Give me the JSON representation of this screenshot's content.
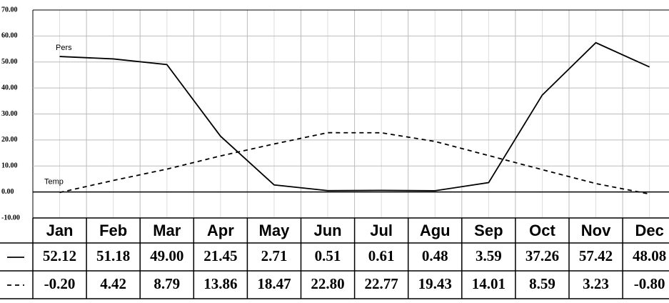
{
  "chart_data": {
    "type": "line",
    "categories": [
      "Jan",
      "Feb",
      "Mar",
      "Apr",
      "May",
      "Jun",
      "Jul",
      "Agu",
      "Sep",
      "Oct",
      "Nov",
      "Dec"
    ],
    "series": [
      {
        "name": "Pers",
        "color": "#000000",
        "line_style": "solid",
        "values": [
          52.12,
          51.18,
          49.0,
          21.45,
          2.71,
          0.51,
          0.61,
          0.48,
          3.59,
          37.26,
          57.42,
          48.08
        ],
        "value_labels": [
          "52.12",
          "51.18",
          "49.00",
          "21.45",
          "2.71",
          "0.51",
          "0.61",
          "0.48",
          "3.59",
          "37.26",
          "57.42",
          "48.08"
        ]
      },
      {
        "name": "Temp",
        "color": "#000000",
        "line_style": "dashed",
        "values": [
          -0.2,
          4.42,
          8.79,
          13.86,
          18.47,
          22.8,
          22.77,
          19.43,
          14.01,
          8.59,
          3.23,
          -0.8
        ],
        "value_labels": [
          "-0.20",
          "4.42",
          "8.79",
          "13.86",
          "18.47",
          "22.80",
          "22.77",
          "19.43",
          "14.01",
          "8.59",
          "3.23",
          "-0.80"
        ]
      }
    ],
    "ylim": [
      -10,
      70
    ],
    "yticks": [
      {
        "value": -10,
        "label": "-10.00"
      },
      {
        "value": 0,
        "label": "0.00"
      },
      {
        "value": 10,
        "label": "10.00"
      },
      {
        "value": 20,
        "label": "20.00"
      },
      {
        "value": 30,
        "label": "30.00"
      },
      {
        "value": 40,
        "label": "40.00"
      },
      {
        "value": 50,
        "label": "50.00"
      },
      {
        "value": 60,
        "label": "60.00"
      },
      {
        "value": 70,
        "label": "70.00"
      }
    ],
    "grid": true
  }
}
